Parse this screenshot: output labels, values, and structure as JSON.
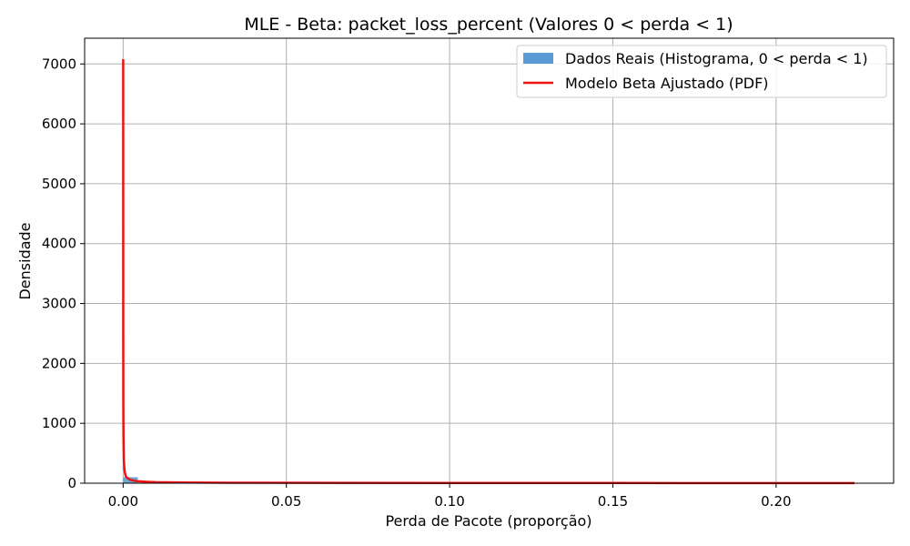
{
  "chart_data": {
    "type": "bar",
    "title": "MLE - Beta: packet_loss_percent (Valores 0 < perda < 1)",
    "xlabel": "Perda de Pacote (proporção)",
    "ylabel": "Densidade",
    "xlim": [
      -0.0118,
      0.236
    ],
    "ylim": [
      0,
      7430
    ],
    "x_ticks": [
      0.0,
      0.05,
      0.1,
      0.15,
      0.2
    ],
    "x_tick_labels": [
      "0.00",
      "0.05",
      "0.10",
      "0.15",
      "0.20"
    ],
    "y_ticks": [
      0,
      1000,
      2000,
      3000,
      4000,
      5000,
      6000,
      7000
    ],
    "y_tick_labels": [
      "0",
      "1000",
      "2000",
      "3000",
      "4000",
      "5000",
      "6000",
      "7000"
    ],
    "grid": true,
    "legend_position": "top-right",
    "histogram": {
      "name": "Dados Reais (Histograma, 0 < perda < 1)",
      "color": "#5b9bd5",
      "bins": [
        {
          "x0": 0.0,
          "x1": 0.0045,
          "y": 100
        },
        {
          "x0": 0.0045,
          "x1": 0.009,
          "y": 5
        }
      ]
    },
    "pdf": {
      "name": "Modelo Beta Ajustado (PDF)",
      "color": "#ee1111",
      "points": [
        {
          "x": 1e-05,
          "y": 7080
        },
        {
          "x": 3e-05,
          "y": 2500
        },
        {
          "x": 6e-05,
          "y": 1300
        },
        {
          "x": 0.0001,
          "y": 800
        },
        {
          "x": 0.0002,
          "y": 400
        },
        {
          "x": 0.0004,
          "y": 220
        },
        {
          "x": 0.0007,
          "y": 135
        },
        {
          "x": 0.001,
          "y": 100
        },
        {
          "x": 0.002,
          "y": 60
        },
        {
          "x": 0.004,
          "y": 35
        },
        {
          "x": 0.007,
          "y": 24
        },
        {
          "x": 0.01,
          "y": 18
        },
        {
          "x": 0.02,
          "y": 11
        },
        {
          "x": 0.04,
          "y": 7
        },
        {
          "x": 0.07,
          "y": 5
        },
        {
          "x": 0.1,
          "y": 4
        },
        {
          "x": 0.15,
          "y": 3
        },
        {
          "x": 0.2,
          "y": 2.5
        },
        {
          "x": 0.224,
          "y": 2
        }
      ]
    }
  }
}
